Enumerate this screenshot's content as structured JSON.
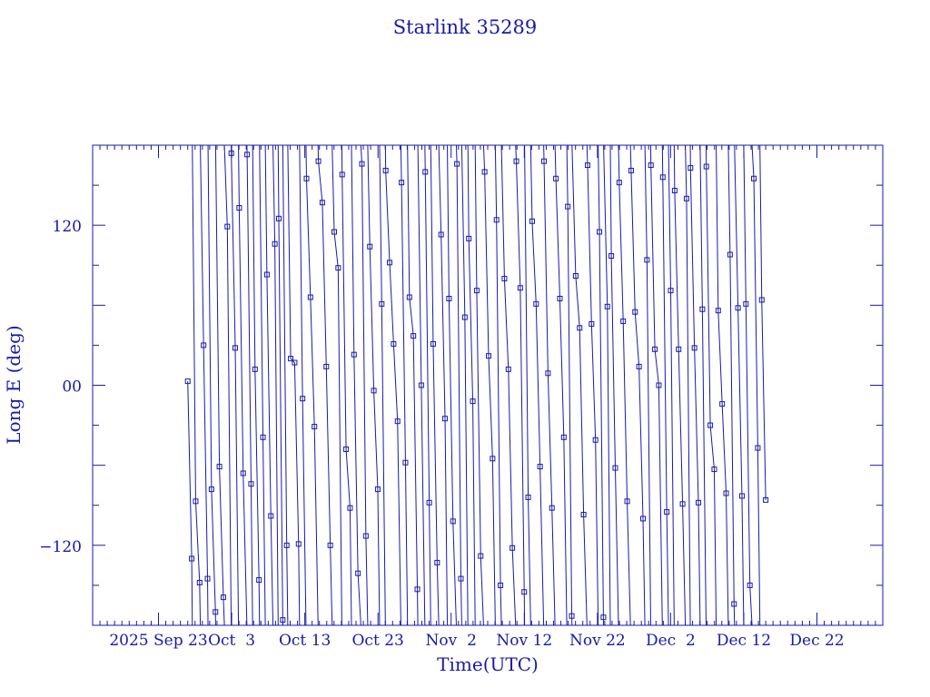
{
  "chart_data": {
    "type": "line",
    "title": "Starlink 35289",
    "xlabel": "Time(UTC)",
    "ylabel": "Long E (deg)",
    "x_range": [
      "2025-09-14",
      "2025-12-31"
    ],
    "y_range": [
      -180,
      180
    ],
    "x_tick_labels": [
      "2025 Sep 23",
      "Oct  3",
      "Oct 13",
      "Oct 23",
      "Nov  2",
      "Nov 12",
      "Nov 22",
      "Dec  2",
      "Dec 12",
      "Dec 22"
    ],
    "x_tick_values": [
      "2025-09-23",
      "2025-10-03",
      "2025-10-13",
      "2025-10-23",
      "2025-11-02",
      "2025-11-12",
      "2025-11-22",
      "2025-12-02",
      "2025-12-12",
      "2025-12-22"
    ],
    "y_tick_labels": [
      "120",
      "00",
      "−120"
    ],
    "y_tick_values": [
      120,
      0,
      -120
    ],
    "grid": false,
    "color": "#1a1aa6",
    "series": [
      {
        "x_start": "2025-09-27",
        "x_end": "2025-12-15",
        "x_unit_note": "dates (UTC)",
        "samples": [
          [
            "2025-09-27",
            3
          ],
          [
            "2025-09-28",
            -130
          ],
          [
            "2025-09-28",
            -87
          ],
          [
            "2025-09-29",
            -148
          ],
          [
            "2025-09-29",
            30
          ],
          [
            "2025-09-30",
            -145
          ],
          [
            "2025-10-01",
            -78
          ],
          [
            "2025-10-02",
            -170
          ],
          [
            "2025-10-03",
            -61
          ],
          [
            "2025-10-03",
            -159
          ],
          [
            "2025-10-04",
            119
          ],
          [
            "2025-10-05",
            174
          ],
          [
            "2025-10-05",
            28
          ],
          [
            "2025-10-06",
            133
          ],
          [
            "2025-10-07",
            -66
          ],
          [
            "2025-10-07",
            173
          ],
          [
            "2025-10-08",
            -74
          ],
          [
            "2025-10-09",
            12
          ],
          [
            "2025-10-09",
            -146
          ],
          [
            "2025-10-10",
            -39
          ],
          [
            "2025-10-11",
            83
          ],
          [
            "2025-10-12",
            -98
          ],
          [
            "2025-10-12",
            106
          ],
          [
            "2025-10-13",
            125
          ],
          [
            "2025-10-14",
            -176
          ],
          [
            "2025-10-14",
            -120
          ],
          [
            "2025-10-15",
            20
          ],
          [
            "2025-10-16",
            17
          ],
          [
            "2025-10-16",
            -119
          ],
          [
            "2025-10-17",
            -10
          ],
          [
            "2025-10-17",
            155
          ],
          [
            "2025-10-18",
            66
          ],
          [
            "2025-10-18",
            -31
          ],
          [
            "2025-10-19",
            168
          ],
          [
            "2025-10-19",
            137
          ],
          [
            "2025-10-20",
            14
          ],
          [
            "2025-10-20",
            -120
          ],
          [
            "2025-10-21",
            115
          ],
          [
            "2025-10-21",
            88
          ],
          [
            "2025-10-22",
            158
          ],
          [
            "2025-10-22",
            -48
          ],
          [
            "2025-10-23",
            -92
          ],
          [
            "2025-10-23",
            23
          ],
          [
            "2025-10-24",
            -141
          ],
          [
            "2025-10-24",
            166
          ],
          [
            "2025-10-25",
            -113
          ],
          [
            "2025-10-25",
            104
          ],
          [
            "2025-10-26",
            -4
          ],
          [
            "2025-10-26",
            -78
          ],
          [
            "2025-10-27",
            61
          ],
          [
            "2025-10-27",
            161
          ],
          [
            "2025-10-28",
            92
          ],
          [
            "2025-10-28",
            31
          ],
          [
            "2025-10-29",
            -27
          ],
          [
            "2025-10-29",
            152
          ],
          [
            "2025-10-30",
            -58
          ],
          [
            "2025-10-30",
            66
          ],
          [
            "2025-10-31",
            37
          ],
          [
            "2025-10-31",
            -153
          ],
          [
            "2025-11-01",
            0
          ],
          [
            "2025-11-01",
            160
          ],
          [
            "2025-11-02",
            -88
          ],
          [
            "2025-11-02",
            31
          ],
          [
            "2025-11-03",
            -133
          ],
          [
            "2025-11-03",
            113
          ],
          [
            "2025-11-04",
            -25
          ],
          [
            "2025-11-04",
            65
          ],
          [
            "2025-11-05",
            -102
          ],
          [
            "2025-11-05",
            166
          ],
          [
            "2025-11-06",
            -145
          ],
          [
            "2025-11-06",
            51
          ],
          [
            "2025-11-07",
            110
          ],
          [
            "2025-11-07",
            -12
          ],
          [
            "2025-11-08",
            71
          ],
          [
            "2025-11-08",
            -128
          ],
          [
            "2025-11-09",
            160
          ],
          [
            "2025-11-09",
            22
          ],
          [
            "2025-11-10",
            -55
          ],
          [
            "2025-11-10",
            124
          ],
          [
            "2025-11-11",
            -150
          ],
          [
            "2025-11-11",
            80
          ],
          [
            "2025-11-12",
            12
          ],
          [
            "2025-11-12",
            -122
          ],
          [
            "2025-11-13",
            168
          ],
          [
            "2025-11-13",
            73
          ],
          [
            "2025-11-14",
            -155
          ],
          [
            "2025-11-14",
            -84
          ],
          [
            "2025-11-15",
            123
          ],
          [
            "2025-11-15",
            61
          ],
          [
            "2025-11-16",
            -61
          ],
          [
            "2025-11-16",
            168
          ],
          [
            "2025-11-17",
            9
          ],
          [
            "2025-11-17",
            -92
          ],
          [
            "2025-11-18",
            155
          ],
          [
            "2025-11-18",
            65
          ],
          [
            "2025-11-19",
            -39
          ],
          [
            "2025-11-19",
            134
          ],
          [
            "2025-11-20",
            -173
          ],
          [
            "2025-11-20",
            82
          ],
          [
            "2025-11-21",
            43
          ],
          [
            "2025-11-21",
            -97
          ],
          [
            "2025-11-22",
            165
          ],
          [
            "2025-11-22",
            46
          ],
          [
            "2025-11-23",
            -41
          ],
          [
            "2025-11-23",
            115
          ],
          [
            "2025-11-24",
            -174
          ],
          [
            "2025-11-24",
            59
          ],
          [
            "2025-11-25",
            97
          ],
          [
            "2025-11-25",
            -62
          ],
          [
            "2025-11-26",
            152
          ],
          [
            "2025-11-26",
            48
          ],
          [
            "2025-11-27",
            -87
          ],
          [
            "2025-11-27",
            161
          ],
          [
            "2025-11-28",
            55
          ],
          [
            "2025-11-28",
            14
          ],
          [
            "2025-11-29",
            -100
          ],
          [
            "2025-11-29",
            94
          ],
          [
            "2025-11-30",
            165
          ],
          [
            "2025-11-30",
            27
          ],
          [
            "2025-12-01",
            0
          ],
          [
            "2025-12-01",
            156
          ],
          [
            "2025-12-02",
            -95
          ],
          [
            "2025-12-02",
            71
          ],
          [
            "2025-12-03",
            146
          ],
          [
            "2025-12-03",
            27
          ],
          [
            "2025-12-04",
            -89
          ],
          [
            "2025-12-04",
            140
          ],
          [
            "2025-12-05",
            163
          ],
          [
            "2025-12-05",
            28
          ],
          [
            "2025-12-06",
            -88
          ],
          [
            "2025-12-06",
            57
          ],
          [
            "2025-12-07",
            164
          ],
          [
            "2025-12-07",
            -30
          ],
          [
            "2025-12-08",
            -63
          ],
          [
            "2025-12-08",
            56
          ],
          [
            "2025-12-09",
            -14
          ],
          [
            "2025-12-09",
            -81
          ],
          [
            "2025-12-10",
            98
          ],
          [
            "2025-12-10",
            -164
          ],
          [
            "2025-12-11",
            58
          ],
          [
            "2025-12-11",
            -83
          ],
          [
            "2025-12-12",
            61
          ],
          [
            "2025-12-12",
            -150
          ],
          [
            "2025-12-13",
            155
          ],
          [
            "2025-12-13",
            -47
          ],
          [
            "2025-12-14",
            64
          ],
          [
            "2025-12-14",
            -86
          ]
        ]
      }
    ]
  }
}
